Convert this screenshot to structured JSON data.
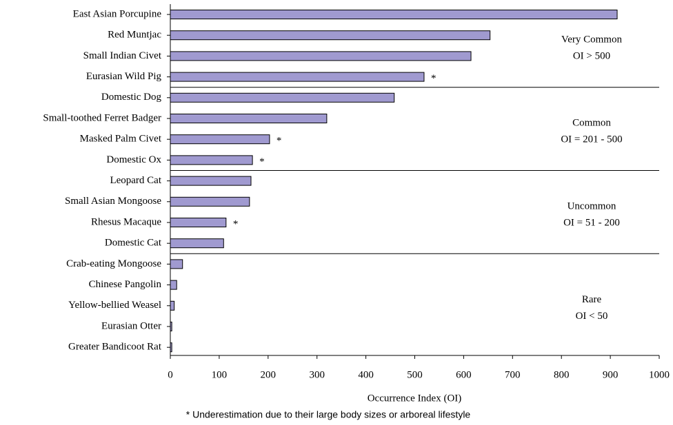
{
  "chart_data": {
    "type": "bar",
    "orientation": "horizontal",
    "color": "#a09ad0",
    "x_label": "Occurrence Index (OI)",
    "footnote": "* Underestimation due to their large body sizes or arboreal lifestyle",
    "xlim": [
      0,
      1000
    ],
    "xticks": [
      0,
      100,
      200,
      300,
      400,
      500,
      600,
      700,
      800,
      900,
      1000
    ],
    "groups": [
      {
        "name": "Very Common",
        "range": "OI > 500",
        "categories": [
          "East Asian Porcupine",
          "Red Muntjac",
          "Small Indian Civet",
          "Eurasian Wild Pig"
        ],
        "values": [
          914,
          654,
          615,
          519
        ],
        "markers": [
          null,
          null,
          null,
          "*"
        ]
      },
      {
        "name": "Common",
        "range": "OI = 201 - 500",
        "categories": [
          "Domestic Dog",
          "Small-toothed Ferret Badger",
          "Masked Palm Civet",
          "Domestic Ox"
        ],
        "values": [
          458,
          320,
          203,
          168
        ],
        "markers": [
          null,
          null,
          "*",
          "*"
        ]
      },
      {
        "name": "Uncommon",
        "range": "OI = 51 - 200",
        "categories": [
          "Leopard Cat",
          "Small Asian Mongoose",
          "Rhesus Macaque",
          "Domestic Cat"
        ],
        "values": [
          165,
          162,
          114,
          109
        ],
        "markers": [
          null,
          null,
          "*",
          null
        ]
      },
      {
        "name": "Rare",
        "range": "OI < 50",
        "categories": [
          "Crab-eating Mongoose",
          "Chinese Pangolin",
          "Yellow-bellied Weasel",
          "Eurasian Otter",
          "Greater Bandicoot Rat"
        ],
        "values": [
          25,
          13,
          8,
          3,
          3
        ],
        "markers": [
          null,
          null,
          null,
          null,
          null
        ]
      }
    ]
  }
}
